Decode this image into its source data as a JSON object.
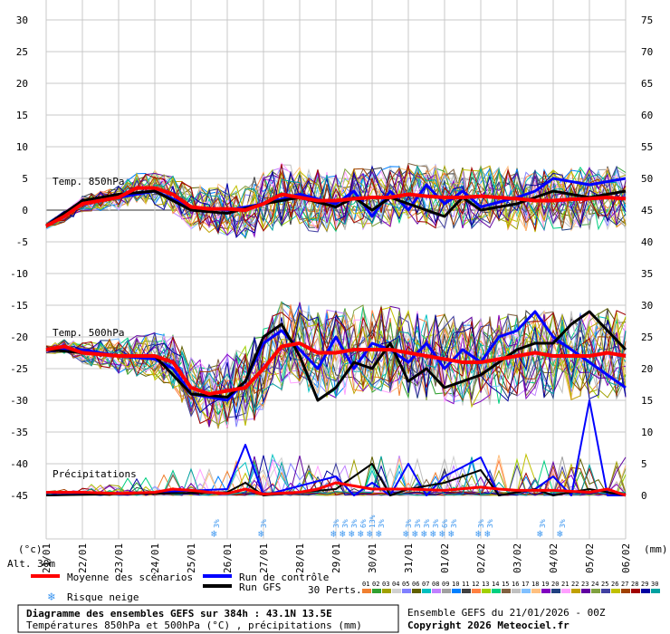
{
  "chart_data": {
    "type": "line",
    "left_axis_ticks": [
      "30",
      "25",
      "20",
      "15",
      "10",
      "5",
      "0",
      "-5",
      "-10",
      "-15",
      "-20",
      "-25",
      "-30",
      "-35",
      "-40",
      "-45"
    ],
    "right_axis_ticks": [
      "75",
      "70",
      "65",
      "60",
      "55",
      "50",
      "45",
      "40",
      "35",
      "30",
      "25",
      "20",
      "15",
      "10",
      "5",
      "0"
    ],
    "left_unit": "(°c)",
    "right_unit": "(mm)",
    "x_labels": [
      "21/01",
      "22/01",
      "23/01",
      "24/01",
      "25/01",
      "26/01",
      "27/01",
      "28/01",
      "29/01",
      "30/01",
      "31/01",
      "01/02",
      "02/02",
      "03/02",
      "04/02",
      "05/02",
      "06/02"
    ],
    "panel_labels": {
      "t850": "Temp. 850hPa",
      "t500": "Temp. 500hPa",
      "precip": "Précipitations"
    },
    "altitude": "Alt. 30m",
    "series": [
      {
        "name": "Moyenne des scénarios",
        "color": "#ff0000",
        "t850": [
          [
            0,
            -2.5
          ],
          [
            0.5,
            -1
          ],
          [
            1,
            1
          ],
          [
            1.5,
            1.5
          ],
          [
            2,
            2
          ],
          [
            2.5,
            3.5
          ],
          [
            3,
            3.5
          ],
          [
            3.5,
            2.5
          ],
          [
            4,
            0.5
          ],
          [
            4.5,
            0.2
          ],
          [
            5,
            0.2
          ],
          [
            5.5,
            0
          ],
          [
            6,
            1
          ],
          [
            6.5,
            2.5
          ],
          [
            7,
            2
          ],
          [
            7.5,
            1.5
          ],
          [
            8,
            1.5
          ],
          [
            8.5,
            1.8
          ],
          [
            9,
            2
          ],
          [
            9.5,
            2
          ],
          [
            10,
            2.5
          ],
          [
            10.5,
            2.2
          ],
          [
            11,
            2
          ],
          [
            11.5,
            2
          ],
          [
            12,
            2.2
          ],
          [
            12.5,
            2
          ],
          [
            13,
            1.8
          ],
          [
            13.5,
            1.5
          ],
          [
            14,
            1.5
          ],
          [
            14.5,
            1.7
          ],
          [
            15,
            1.8
          ],
          [
            15.5,
            2
          ],
          [
            16,
            1.8
          ]
        ],
        "t500": [
          [
            0,
            -22
          ],
          [
            0.5,
            -21.5
          ],
          [
            1,
            -22.5
          ],
          [
            2,
            -23
          ],
          [
            3,
            -23
          ],
          [
            3.5,
            -24
          ],
          [
            4,
            -28
          ],
          [
            4.5,
            -29
          ],
          [
            5,
            -28.5
          ],
          [
            5.5,
            -28
          ],
          [
            6,
            -25
          ],
          [
            6.5,
            -21.5
          ],
          [
            7,
            -21
          ],
          [
            7.5,
            -22.5
          ],
          [
            8,
            -22.5
          ],
          [
            8.5,
            -22
          ],
          [
            9,
            -22
          ],
          [
            9.5,
            -22
          ],
          [
            10,
            -22.5
          ],
          [
            10.5,
            -23
          ],
          [
            11,
            -23.5
          ],
          [
            11.5,
            -24
          ],
          [
            12,
            -24
          ],
          [
            12.5,
            -23.5
          ],
          [
            13,
            -23
          ],
          [
            13.5,
            -22.5
          ],
          [
            14,
            -23
          ],
          [
            14.5,
            -23
          ],
          [
            15,
            -23
          ],
          [
            15.5,
            -22.5
          ],
          [
            16,
            -23
          ]
        ],
        "precip_mm": [
          [
            0,
            0.5
          ],
          [
            1,
            0.5
          ],
          [
            2,
            0.3
          ],
          [
            3,
            0.5
          ],
          [
            3.5,
            1
          ],
          [
            4,
            0.8
          ],
          [
            4.5,
            0.5
          ],
          [
            5,
            0.3
          ],
          [
            5.5,
            1
          ],
          [
            6,
            0.2
          ],
          [
            7,
            0.5
          ],
          [
            7.5,
            1
          ],
          [
            8,
            2
          ],
          [
            8.5,
            1.5
          ],
          [
            9,
            1
          ],
          [
            10,
            1
          ],
          [
            11,
            0.8
          ],
          [
            12,
            1.3
          ],
          [
            12.5,
            1
          ],
          [
            13,
            0.8
          ],
          [
            14,
            0.8
          ],
          [
            15,
            0.5
          ],
          [
            15.5,
            1
          ],
          [
            16,
            0
          ]
        ]
      },
      {
        "name": "Run de contrôle",
        "color": "#0000ff",
        "t850": [
          [
            0,
            -2.5
          ],
          [
            1,
            1
          ],
          [
            2,
            2
          ],
          [
            3,
            3
          ],
          [
            4,
            0.5
          ],
          [
            5,
            0
          ],
          [
            6,
            1
          ],
          [
            7,
            2.5
          ],
          [
            8,
            1
          ],
          [
            8.5,
            3
          ],
          [
            9,
            -1
          ],
          [
            9.5,
            3
          ],
          [
            10,
            0
          ],
          [
            10.5,
            4
          ],
          [
            11,
            1
          ],
          [
            11.5,
            3
          ],
          [
            12,
            0.5
          ],
          [
            13,
            2
          ],
          [
            13.5,
            3
          ],
          [
            14,
            5
          ],
          [
            15,
            4
          ],
          [
            16,
            5
          ]
        ],
        "t500": [
          [
            0,
            -22
          ],
          [
            1,
            -22
          ],
          [
            2,
            -23
          ],
          [
            3,
            -23.5
          ],
          [
            3.5,
            -25
          ],
          [
            4,
            -29
          ],
          [
            5,
            -30
          ],
          [
            5.5,
            -27
          ],
          [
            6,
            -21
          ],
          [
            6.5,
            -19
          ],
          [
            7,
            -22
          ],
          [
            7.5,
            -25
          ],
          [
            8,
            -20
          ],
          [
            8.5,
            -25
          ],
          [
            9,
            -21
          ],
          [
            9.5,
            -22
          ],
          [
            10,
            -24
          ],
          [
            10.5,
            -21
          ],
          [
            11,
            -25
          ],
          [
            11.5,
            -22
          ],
          [
            12,
            -24
          ],
          [
            12.5,
            -20
          ],
          [
            13,
            -19
          ],
          [
            13.5,
            -16
          ],
          [
            14,
            -20
          ],
          [
            15,
            -24
          ],
          [
            15.5,
            -26
          ],
          [
            16,
            -28
          ]
        ],
        "precip_mm": [
          [
            0,
            0
          ],
          [
            3,
            0.5
          ],
          [
            5,
            1
          ],
          [
            5.5,
            8
          ],
          [
            6,
            0
          ],
          [
            8,
            3
          ],
          [
            8.5,
            0
          ],
          [
            9,
            2
          ],
          [
            9.5,
            0
          ],
          [
            10,
            5
          ],
          [
            10.5,
            0
          ],
          [
            11,
            3
          ],
          [
            12,
            6
          ],
          [
            12.5,
            0
          ],
          [
            13.5,
            1
          ],
          [
            14,
            3
          ],
          [
            14.5,
            0
          ],
          [
            15,
            15
          ],
          [
            15.5,
            0
          ],
          [
            16,
            0
          ]
        ]
      },
      {
        "name": "Run GFS",
        "color": "#000000",
        "t850": [
          [
            0,
            -2.5
          ],
          [
            1,
            1.5
          ],
          [
            2,
            2.5
          ],
          [
            3,
            3
          ],
          [
            4,
            0
          ],
          [
            5,
            -0.5
          ],
          [
            6,
            1
          ],
          [
            7,
            2
          ],
          [
            8,
            0.5
          ],
          [
            8.5,
            2
          ],
          [
            9,
            0
          ],
          [
            9.5,
            2
          ],
          [
            10,
            1
          ],
          [
            11,
            -1
          ],
          [
            11.5,
            2
          ],
          [
            12,
            0
          ],
          [
            13,
            1
          ],
          [
            14,
            3
          ],
          [
            15,
            2
          ],
          [
            16,
            3
          ]
        ],
        "t500": [
          [
            0,
            -22
          ],
          [
            1,
            -22.5
          ],
          [
            2,
            -23
          ],
          [
            3,
            -23
          ],
          [
            4,
            -29
          ],
          [
            5,
            -29.5
          ],
          [
            5.5,
            -27
          ],
          [
            6,
            -20
          ],
          [
            6.5,
            -18
          ],
          [
            7,
            -23
          ],
          [
            7.5,
            -30
          ],
          [
            8,
            -28
          ],
          [
            8.5,
            -24
          ],
          [
            9,
            -25
          ],
          [
            9.5,
            -21
          ],
          [
            10,
            -27
          ],
          [
            10.5,
            -25
          ],
          [
            11,
            -28
          ],
          [
            12,
            -26
          ],
          [
            12.5,
            -24
          ],
          [
            13,
            -22
          ],
          [
            13.5,
            -21
          ],
          [
            14,
            -21
          ],
          [
            14.5,
            -18
          ],
          [
            15,
            -16
          ],
          [
            15.5,
            -19
          ],
          [
            16,
            -22
          ]
        ],
        "precip_mm": [
          [
            0,
            0
          ],
          [
            5,
            0.5
          ],
          [
            5.5,
            2
          ],
          [
            6,
            0
          ],
          [
            8,
            1
          ],
          [
            9,
            5
          ],
          [
            9.5,
            0
          ],
          [
            10,
            1
          ],
          [
            11,
            2
          ],
          [
            12,
            4
          ],
          [
            12.5,
            0
          ],
          [
            13.5,
            1
          ],
          [
            14,
            0
          ],
          [
            15,
            1
          ],
          [
            16,
            0
          ]
        ]
      }
    ],
    "snow_risk": [
      {
        "x": 4.7,
        "pct": "3%"
      },
      {
        "x": 6,
        "pct": "3%"
      },
      {
        "x": 8.0,
        "pct": "3%"
      },
      {
        "x": 8.25,
        "pct": "3%"
      },
      {
        "x": 8.5,
        "pct": "3%"
      },
      {
        "x": 8.75,
        "pct": "6%"
      },
      {
        "x": 9.0,
        "pct": "13%"
      },
      {
        "x": 9.25,
        "pct": "3%"
      },
      {
        "x": 10.0,
        "pct": "3%"
      },
      {
        "x": 10.25,
        "pct": "3%"
      },
      {
        "x": 10.5,
        "pct": "3%"
      },
      {
        "x": 10.75,
        "pct": "3%"
      },
      {
        "x": 11.0,
        "pct": "6%"
      },
      {
        "x": 11.25,
        "pct": "3%"
      },
      {
        "x": 12.0,
        "pct": "3%"
      },
      {
        "x": 12.25,
        "pct": "3%"
      },
      {
        "x": 13.7,
        "pct": "3%"
      },
      {
        "x": 14.25,
        "pct": "3%"
      }
    ]
  },
  "legend": {
    "mean": "Moyenne des scénarios",
    "control": "Run de contrôle",
    "gfs": "Run GFS",
    "snow": "Risque neige",
    "perts": "30 Perts.",
    "pert_numbers": [
      "01",
      "02",
      "03",
      "04",
      "05",
      "06",
      "07",
      "08",
      "09",
      "10",
      "11",
      "12",
      "13",
      "14",
      "15",
      "16",
      "17",
      "18",
      "19",
      "20",
      "21",
      "22",
      "23",
      "24",
      "25",
      "26",
      "27",
      "28",
      "29",
      "30"
    ],
    "pert_colors": [
      "#f08030",
      "#30a030",
      "#a0a000",
      "#d0d0d0",
      "#8080ff",
      "#606000",
      "#00c0c0",
      "#c080ff",
      "#a0a0a0",
      "#0080ff",
      "#404040",
      "#ff8040",
      "#a0d000",
      "#00d080",
      "#806040",
      "#c0c0c0",
      "#80c0ff",
      "#ffc080",
      "#8000c0",
      "#204080",
      "#ffa0ff",
      "#c0a000",
      "#6000a0",
      "#80a040",
      "#4040a0",
      "#c0c000",
      "#a04000",
      "#a00000",
      "#0000a0",
      "#00a0a0"
    ]
  },
  "footer": {
    "title": "Diagramme des ensembles GEFS sur 384h : 43.1N 13.5E",
    "subtitle": "Températures 850hPa et 500hPa (°C) , précipitations (mm)",
    "run": "Ensemble GEFS du 21/01/2026 - 00Z",
    "copyright": "Copyright 2026 Meteociel.fr"
  }
}
